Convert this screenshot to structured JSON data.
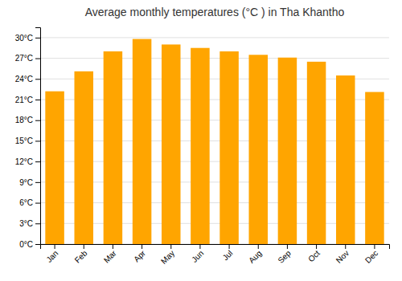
{
  "chart_data": {
    "type": "bar",
    "title": "Average monthly temperatures (°C ) in Tha Khantho",
    "categories": [
      "Jan",
      "Feb",
      "Mar",
      "Apr",
      "May",
      "Jun",
      "Jul",
      "Aug",
      "Sep",
      "Oct",
      "Nov",
      "Dec"
    ],
    "values": [
      22.2,
      25.1,
      28.0,
      29.8,
      29.0,
      28.5,
      28.0,
      27.5,
      27.1,
      26.5,
      24.5,
      22.1
    ],
    "color": "#FFA500",
    "ylim": [
      0,
      31.5
    ],
    "yticks": [
      {
        "value": 0,
        "label": "0°C"
      },
      {
        "value": 3,
        "label": "3°C"
      },
      {
        "value": 6,
        "label": "6°C"
      },
      {
        "value": 9,
        "label": "9°C"
      },
      {
        "value": 12,
        "label": "12°C"
      },
      {
        "value": 15,
        "label": "15°C"
      },
      {
        "value": 18,
        "label": "18°C"
      },
      {
        "value": 21,
        "label": "21°C"
      },
      {
        "value": 24,
        "label": "24°C"
      },
      {
        "value": 27,
        "label": "27°C"
      },
      {
        "value": 30,
        "label": "30°C"
      }
    ],
    "grid": true
  }
}
